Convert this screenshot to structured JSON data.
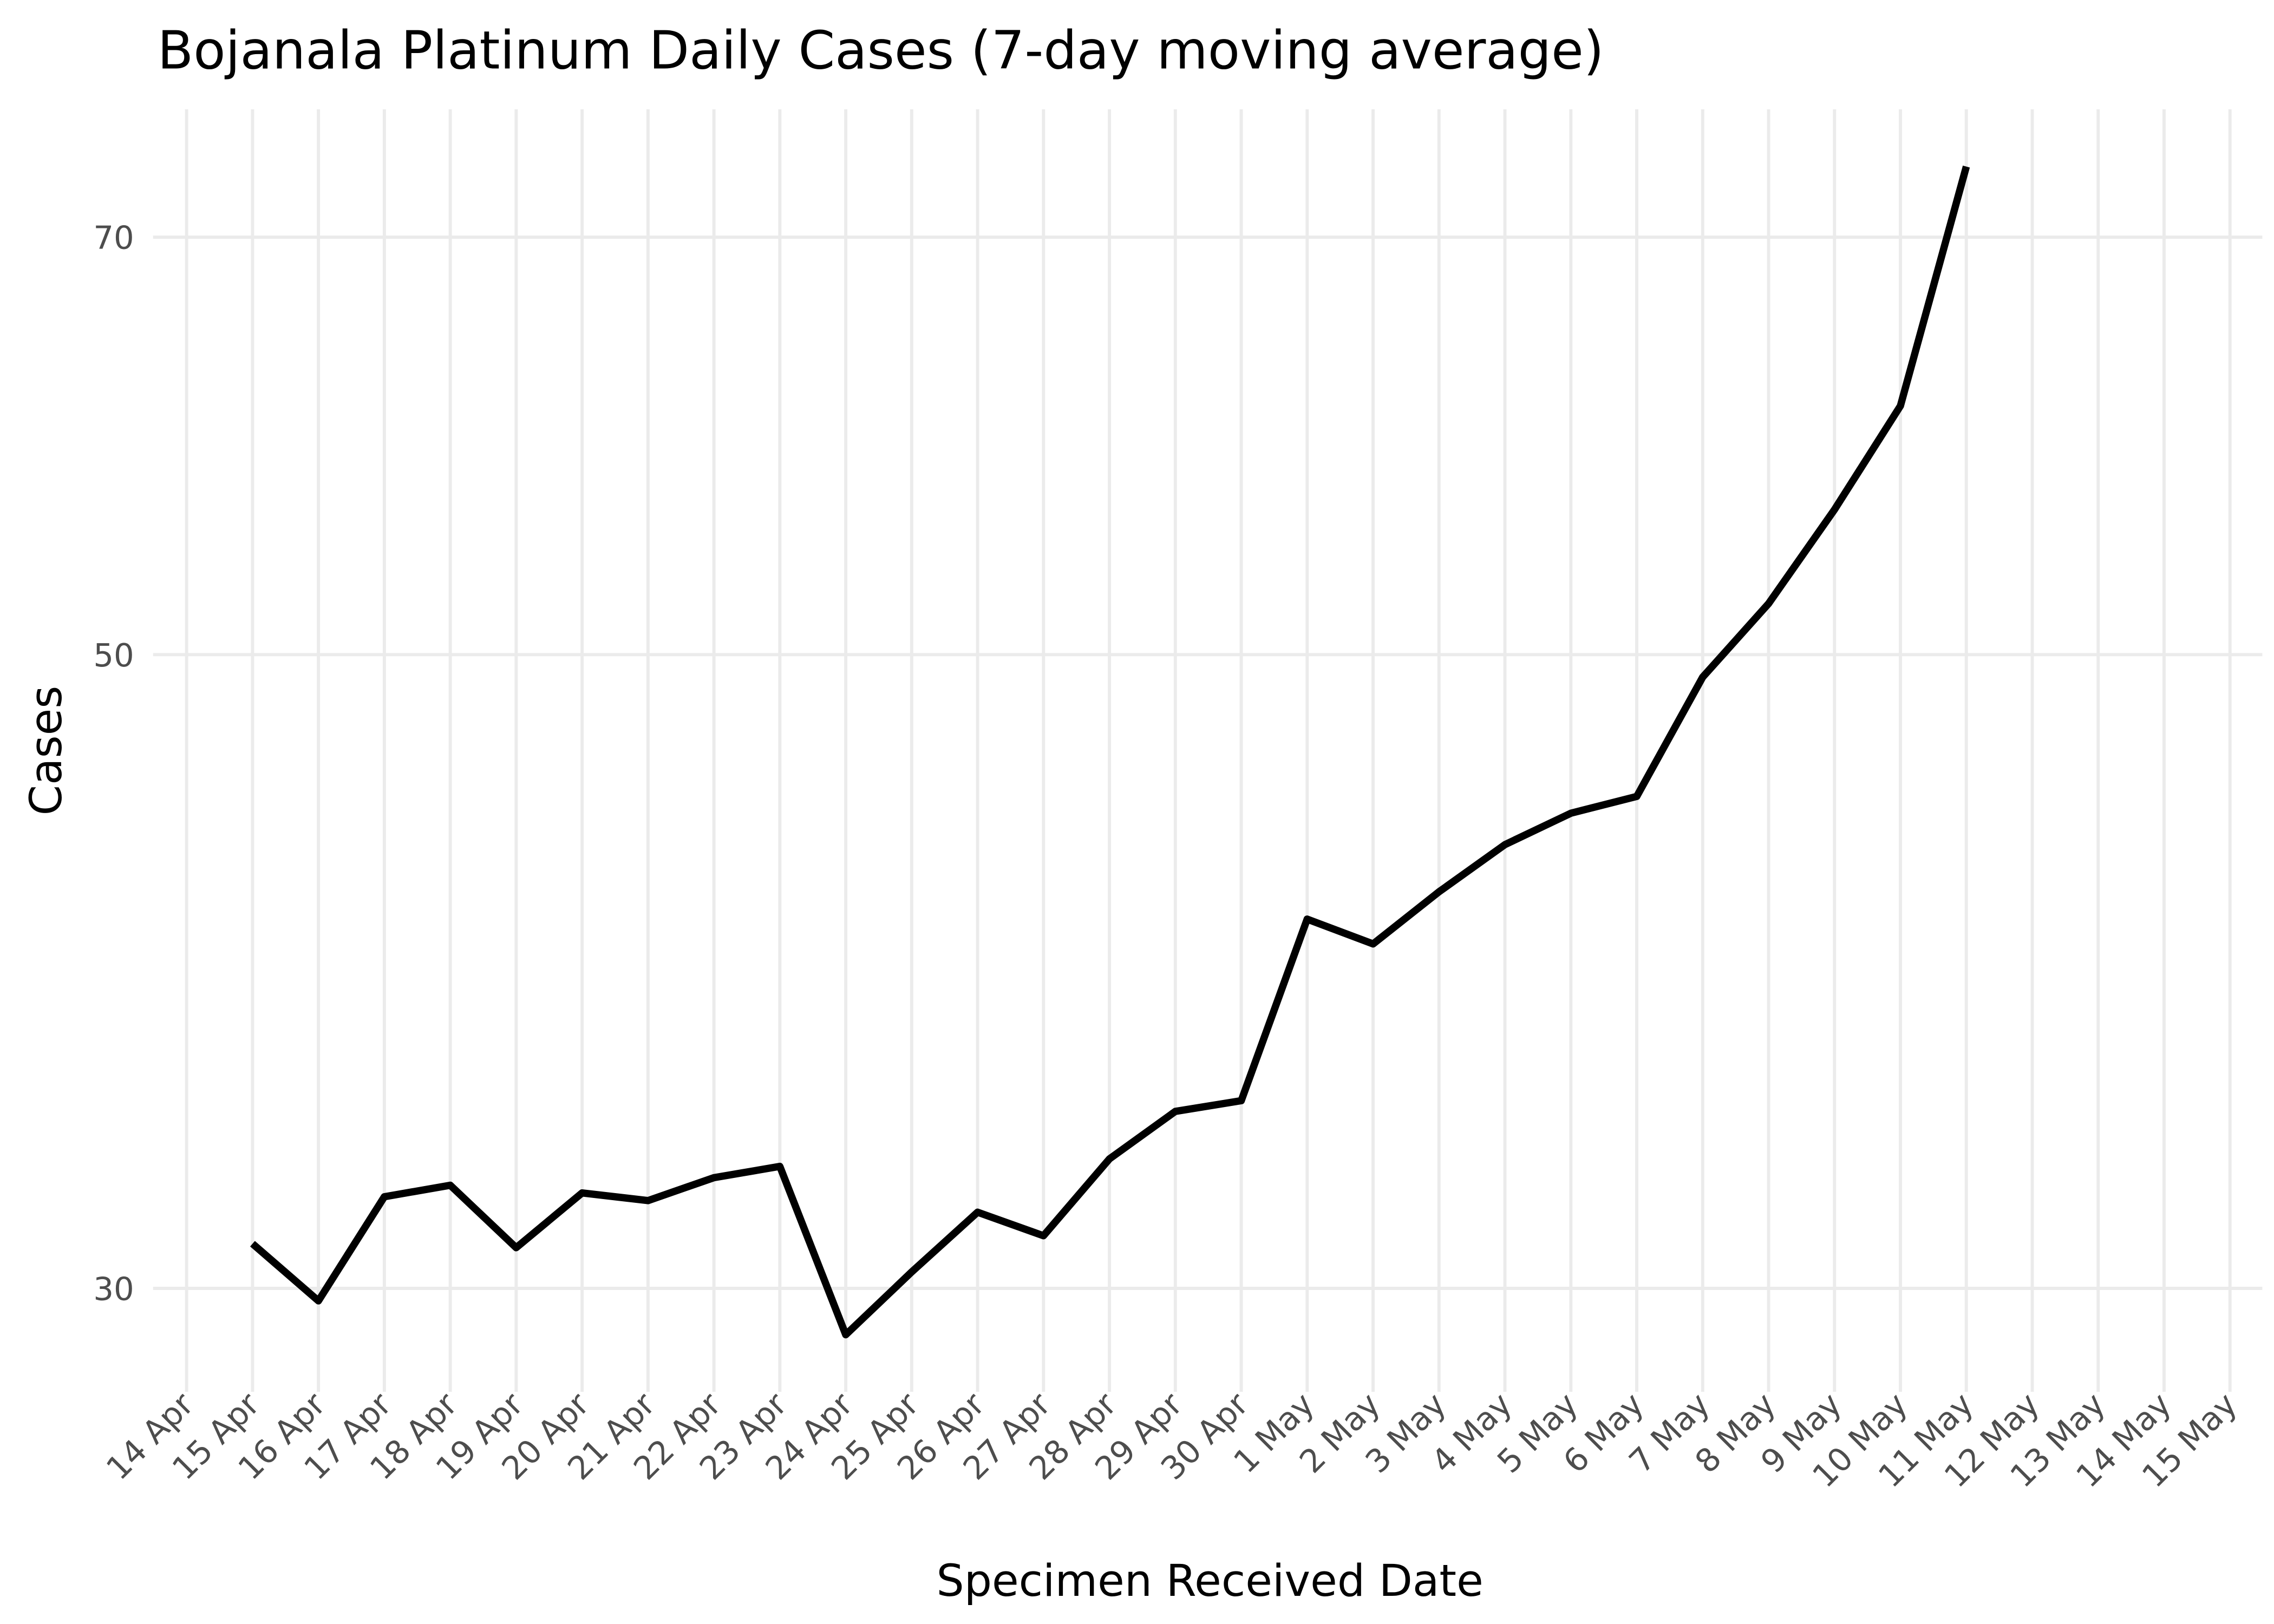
{
  "chart_data": {
    "type": "line",
    "title": "Bojanala Platinum Daily Cases (7-day moving average)",
    "x_label": "Specimen Received Date",
    "y_label": "Cases",
    "categories": [
      "14 Apr",
      "15 Apr",
      "16 Apr",
      "17 Apr",
      "18 Apr",
      "19 Apr",
      "20 Apr",
      "21 Apr",
      "22 Apr",
      "23 Apr",
      "24 Apr",
      "25 Apr",
      "26 Apr",
      "27 Apr",
      "28 Apr",
      "29 Apr",
      "30 Apr",
      "1 May",
      "2 May",
      "3 May",
      "4 May",
      "5 May",
      "6 May",
      "7 May",
      "8 May",
      "9 May",
      "10 May",
      "11 May",
      "12 May",
      "13 May",
      "14 May",
      "15 May"
    ],
    "series": [
      {
        "name": "Cases",
        "color": "#000000",
        "values": [
          null,
          31.1,
          29.7,
          32.3,
          32.6,
          31.0,
          32.4,
          32.2,
          32.8,
          33.1,
          28.9,
          30.4,
          31.9,
          31.3,
          33.3,
          34.6,
          34.9,
          40.4,
          39.6,
          41.3,
          42.9,
          44.0,
          44.6,
          49.1,
          52.1,
          56.2,
          61.1,
          74.1,
          null,
          null,
          null,
          null
        ]
      }
    ],
    "ylim": [
      27.6,
      77.6
    ],
    "yticks": [
      30,
      50,
      70
    ],
    "log_y": true,
    "grid": true
  }
}
